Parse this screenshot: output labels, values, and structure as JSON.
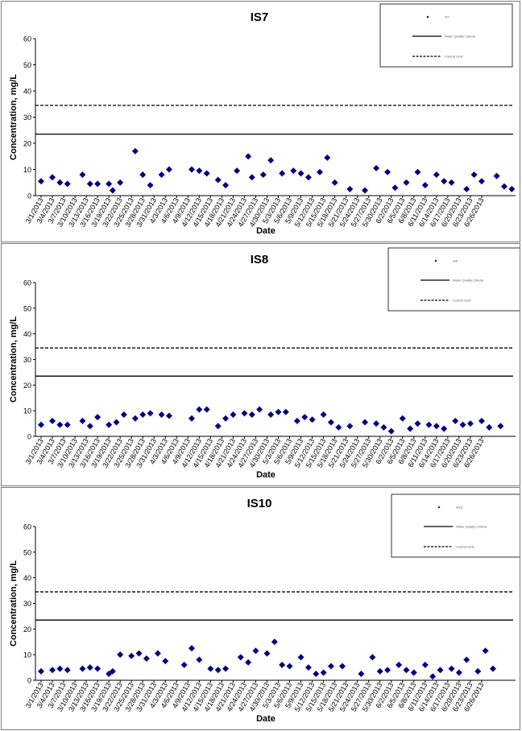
{
  "chart_data": [
    {
      "type": "scatter",
      "title": "IS7",
      "xlabel": "Date",
      "ylabel": "Concentration, mg/L",
      "ylim": [
        0,
        60
      ],
      "yticks": [
        0,
        10,
        20,
        30,
        40,
        50,
        60
      ],
      "x_tick_labels": [
        "3/1/2013",
        "3/4/2013",
        "3/7/2013",
        "3/10/2013",
        "3/13/2013",
        "3/16/2013",
        "3/19/2013",
        "3/22/2013",
        "3/25/2013",
        "3/28/2013",
        "3/31/2013",
        "4/3/2013",
        "4/6/2013",
        "4/9/2013",
        "4/12/2013",
        "4/15/2013",
        "4/18/2013",
        "4/21/2013",
        "4/24/2013",
        "4/27/2013",
        "4/30/2013",
        "5/3/2013",
        "5/6/2013",
        "5/9/2013",
        "5/12/2013",
        "5/15/2013",
        "5/18/2013",
        "5/21/2013",
        "5/24/2013",
        "5/27/2013",
        "5/30/2013",
        "6/2/2013",
        "6/5/2013",
        "6/8/2013",
        "6/11/2013",
        "6/14/2013",
        "6/17/2013",
        "6/20/2013",
        "6/23/2013",
        "6/26/2013"
      ],
      "series": [
        {
          "name": "IS7",
          "marker": "diamond",
          "color": "#000080",
          "x": [
            "3/1/2013",
            "3/4/2013",
            "3/6/2013",
            "3/8/2013",
            "3/12/2013",
            "3/14/2013",
            "3/16/2013",
            "3/19/2013",
            "3/20/2013",
            "3/22/2013",
            "3/26/2013",
            "3/28/2013",
            "3/30/2013",
            "4/2/2013",
            "4/4/2013",
            "4/10/2013",
            "4/12/2013",
            "4/14/2013",
            "4/17/2013",
            "4/19/2013",
            "4/22/2013",
            "4/25/2013",
            "4/26/2013",
            "4/29/2013",
            "5/1/2013",
            "5/4/2013",
            "5/7/2013",
            "5/9/2013",
            "5/11/2013",
            "5/14/2013",
            "5/16/2013",
            "5/18/2013",
            "5/22/2013",
            "5/26/2013",
            "5/29/2013",
            "6/1/2013",
            "6/3/2013",
            "6/6/2013",
            "6/9/2013",
            "6/11/2013",
            "6/14/2013",
            "6/16/2013",
            "6/18/2013",
            "6/22/2013",
            "6/24/2013",
            "6/26/2013",
            "6/30/2013",
            "7/2/2013",
            "7/4/2013"
          ],
          "y": [
            5.5,
            7,
            5,
            4.5,
            8,
            4.5,
            4.5,
            4.5,
            2,
            5,
            17,
            8,
            4,
            8,
            10,
            10,
            9.5,
            8.5,
            6,
            4,
            9.5,
            15,
            7,
            8,
            13.5,
            8.5,
            9.5,
            8.5,
            7,
            9,
            14.5,
            5,
            2.5,
            2,
            10.5,
            9,
            3,
            5,
            9,
            4,
            8,
            5.5,
            5,
            2.5,
            8,
            5.5,
            7.5,
            3.5,
            2.5
          ]
        }
      ],
      "reference_lines": [
        {
          "value": 23.5,
          "style": "solid",
          "legend_label": "Water Quality Criteria"
        },
        {
          "value": 34.5,
          "style": "dashed",
          "legend_label": "Control Limit"
        }
      ],
      "legend_position": "top-right"
    },
    {
      "type": "scatter",
      "title": "IS8",
      "xlabel": "Date",
      "ylabel": "Concentration, mg/L",
      "ylim": [
        0,
        60
      ],
      "yticks": [
        0,
        10,
        20,
        30,
        40,
        50,
        60
      ],
      "x_tick_labels": [
        "3/1/2013",
        "3/4/2013",
        "3/7/2013",
        "3/10/2013",
        "3/13/2013",
        "3/16/2013",
        "3/19/2013",
        "3/22/2013",
        "3/25/2013",
        "3/28/2013",
        "3/31/2013",
        "4/3/2013",
        "4/6/2013",
        "4/9/2013",
        "4/12/2013",
        "4/15/2013",
        "4/18/2013",
        "4/21/2013",
        "4/24/2013",
        "4/27/2013",
        "4/30/2013",
        "5/3/2013",
        "5/6/2013",
        "5/9/2013",
        "5/12/2013",
        "5/15/2013",
        "5/18/2013",
        "5/21/2013",
        "5/24/2013",
        "5/27/2013",
        "5/30/2013",
        "6/2/2013",
        "6/5/2013",
        "6/8/2013",
        "6/11/2013",
        "6/14/2013",
        "6/17/2013",
        "6/20/2013",
        "6/23/2013",
        "6/26/2013"
      ],
      "series": [
        {
          "name": "IS8",
          "marker": "diamond",
          "color": "#000080",
          "x": [
            "3/1/2013",
            "3/4/2013",
            "3/6/2013",
            "3/8/2013",
            "3/12/2013",
            "3/14/2013",
            "3/16/2013",
            "3/19/2013",
            "3/21/2013",
            "3/23/2013",
            "3/26/2013",
            "3/28/2013",
            "3/30/2013",
            "4/2/2013",
            "4/4/2013",
            "4/10/2013",
            "4/12/2013",
            "4/14/2013",
            "4/17/2013",
            "4/19/2013",
            "4/21/2013",
            "4/24/2013",
            "4/26/2013",
            "4/28/2013",
            "5/1/2013",
            "5/3/2013",
            "5/5/2013",
            "5/8/2013",
            "5/10/2013",
            "5/12/2013",
            "5/15/2013",
            "5/17/2013",
            "5/19/2013",
            "5/22/2013",
            "5/26/2013",
            "5/29/2013",
            "5/31/2013",
            "6/2/2013",
            "6/5/2013",
            "6/7/2013",
            "6/9/2013",
            "6/12/2013",
            "6/14/2013",
            "6/16/2013",
            "6/19/2013",
            "6/21/2013",
            "6/23/2013",
            "6/26/2013",
            "6/28/2013",
            "7/1/2013"
          ],
          "y": [
            4.5,
            6,
            4.5,
            4.5,
            6,
            4,
            7.5,
            4.5,
            5.5,
            8.5,
            7,
            8.5,
            9,
            8.5,
            8,
            7,
            10.5,
            10.5,
            4,
            7,
            8.5,
            9,
            8.5,
            10.5,
            8.5,
            9.5,
            9.5,
            6,
            7.5,
            6.5,
            8.5,
            5.5,
            3.5,
            4,
            5.5,
            5,
            3.5,
            2,
            7,
            3,
            5,
            4.5,
            4,
            3,
            6,
            4.5,
            5,
            6,
            3.5,
            4
          ]
        }
      ],
      "reference_lines": [
        {
          "value": 23.5,
          "style": "solid",
          "legend_label": "Water Quality Criteria"
        },
        {
          "value": 34.5,
          "style": "dashed",
          "legend_label": "Control Limit"
        }
      ],
      "legend_position": "top-right"
    },
    {
      "type": "scatter",
      "title": "IS10",
      "xlabel": "Date",
      "ylabel": "Concentration, mg/L",
      "ylim": [
        0,
        60
      ],
      "yticks": [
        0,
        10,
        20,
        30,
        40,
        50,
        60
      ],
      "x_tick_labels": [
        "3/1/2013",
        "3/4/2013",
        "3/7/2013",
        "3/10/2013",
        "3/13/2013",
        "3/16/2013",
        "3/19/2013",
        "3/22/2013",
        "3/25/2013",
        "3/28/2013",
        "3/31/2013",
        "4/3/2013",
        "4/6/2013",
        "4/9/2013",
        "4/12/2013",
        "4/15/2013",
        "4/18/2013",
        "4/21/2013",
        "4/24/2013",
        "4/27/2013",
        "4/30/2013",
        "5/3/2013",
        "5/6/2013",
        "5/9/2013",
        "5/12/2013",
        "5/15/2013",
        "5/18/2013",
        "5/21/2013",
        "5/24/2013",
        "5/27/2013",
        "5/30/2013",
        "6/2/2013",
        "6/5/2013",
        "6/8/2013",
        "6/11/2013",
        "6/14/2013",
        "6/17/2013",
        "6/20/2013",
        "6/23/2013",
        "6/26/2013"
      ],
      "series": [
        {
          "name": "IS10",
          "marker": "diamond",
          "color": "#000080",
          "x": [
            "3/1/2013",
            "3/4/2013",
            "3/6/2013",
            "3/8/2013",
            "3/12/2013",
            "3/14/2013",
            "3/16/2013",
            "3/19/2013",
            "3/20/2013",
            "3/22/2013",
            "3/25/2013",
            "3/27/2013",
            "3/29/2013",
            "4/1/2013",
            "4/3/2013",
            "4/8/2013",
            "4/10/2013",
            "4/12/2013",
            "4/15/2013",
            "4/17/2013",
            "4/19/2013",
            "4/23/2013",
            "4/25/2013",
            "4/27/2013",
            "4/30/2013",
            "5/2/2013",
            "5/4/2013",
            "5/6/2013",
            "5/9/2013",
            "5/11/2013",
            "5/13/2013",
            "5/15/2013",
            "5/17/2013",
            "5/20/2013",
            "5/25/2013",
            "5/28/2013",
            "5/30/2013",
            "6/1/2013",
            "6/4/2013",
            "6/6/2013",
            "6/8/2013",
            "6/11/2013",
            "6/13/2013",
            "6/15/2013",
            "6/18/2013",
            "6/20/2013",
            "6/22/2013",
            "6/25/2013",
            "6/27/2013",
            "6/29/2013"
          ],
          "y": [
            3.5,
            4,
            4.5,
            4,
            4.5,
            5,
            4.5,
            2.5,
            3.5,
            10,
            9.5,
            10.5,
            8.5,
            10.5,
            7.5,
            6,
            12.5,
            8,
            4.5,
            4,
            4.5,
            9,
            7,
            11.5,
            10.5,
            15,
            6,
            5.5,
            9,
            5,
            2.5,
            3,
            5.5,
            5.5,
            2.5,
            9,
            3.5,
            4,
            6,
            4,
            3,
            6,
            1.5,
            4,
            4.5,
            3,
            8,
            3.5,
            11.5,
            4.5
          ]
        }
      ],
      "reference_lines": [
        {
          "value": 23.5,
          "style": "solid",
          "legend_label": "Water Quality Criteria"
        },
        {
          "value": 34.5,
          "style": "dashed",
          "legend_label": "Control Limit"
        }
      ],
      "legend_position": "top-right"
    }
  ]
}
